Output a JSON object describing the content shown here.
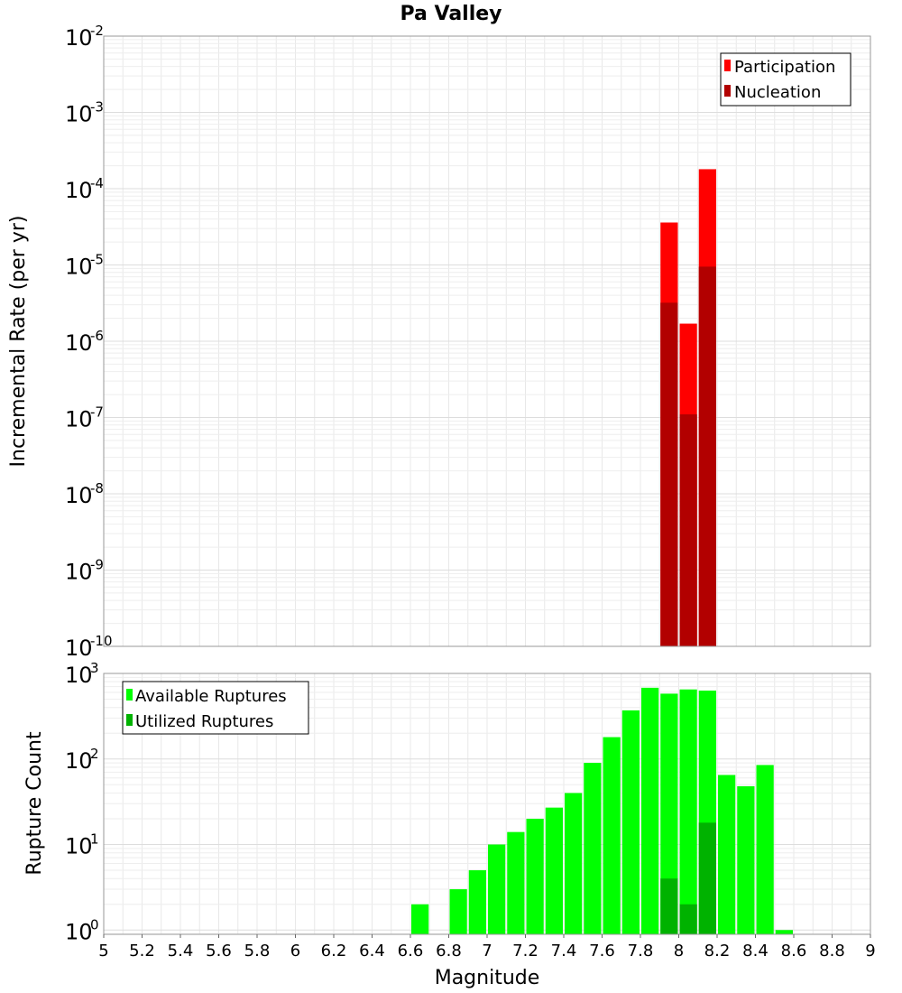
{
  "title": "Pa Valley",
  "colors": {
    "participation": "#ff0000",
    "nucleation": "#b20000",
    "available": "#00ff00",
    "utilized": "#00b200",
    "grid": "#e8e8e8",
    "frame": "#999999"
  },
  "chart_data": [
    {
      "type": "bar",
      "name": "rate-panel",
      "ylabel": "Incremental Rate (per yr)",
      "yscale": "log",
      "ylim_exp": [
        -10,
        -2
      ],
      "y_tick_base": "10",
      "y_tick_exponents": [
        "-10",
        "-9",
        "-8",
        "-7",
        "-6",
        "-5",
        "-4",
        "-3",
        "-2"
      ],
      "xlim": [
        5,
        9
      ],
      "bin_width": 0.1,
      "legend_position": "top-right",
      "series": [
        {
          "name": "Participation",
          "color_key": "participation",
          "x": [
            7.95,
            8.05,
            8.15
          ],
          "values": [
            3.6e-05,
            1.7e-06,
            0.00018
          ]
        },
        {
          "name": "Nucleation",
          "color_key": "nucleation",
          "x": [
            7.95,
            8.05,
            8.15
          ],
          "values": [
            3.2e-06,
            1.1e-07,
            9.5e-06
          ]
        }
      ]
    },
    {
      "type": "bar",
      "name": "count-panel",
      "ylabel": "Rupture Count",
      "xlabel": "Magnitude",
      "yscale": "log",
      "ylim_exp": [
        -0.05,
        3
      ],
      "y_tick_base": "10",
      "y_tick_exponents": [
        "0",
        "1",
        "2",
        "3"
      ],
      "xlim": [
        5,
        9
      ],
      "bin_width": 0.1,
      "x_tick_labels": [
        "5",
        "5.2",
        "5.4",
        "5.6",
        "5.8",
        "6",
        "6.2",
        "6.4",
        "6.6",
        "6.8",
        "7",
        "7.2",
        "7.4",
        "7.6",
        "7.8",
        "8",
        "8.2",
        "8.4",
        "8.6",
        "8.8",
        "9"
      ],
      "legend_position": "top-left",
      "series": [
        {
          "name": "Available Ruptures",
          "color_key": "available",
          "x": [
            6.65,
            6.85,
            6.95,
            7.05,
            7.15,
            7.25,
            7.35,
            7.45,
            7.55,
            7.65,
            7.75,
            7.85,
            7.95,
            8.05,
            8.15,
            8.25,
            8.35,
            8.45,
            8.55
          ],
          "values": [
            2,
            3,
            5,
            10,
            14,
            20,
            27,
            40,
            90,
            180,
            370,
            680,
            580,
            650,
            630,
            65,
            48,
            85,
            1
          ]
        },
        {
          "name": "Utilized Ruptures",
          "color_key": "utilized",
          "x": [
            7.95,
            8.05,
            8.15
          ],
          "values": [
            4,
            2,
            18
          ]
        }
      ]
    }
  ]
}
